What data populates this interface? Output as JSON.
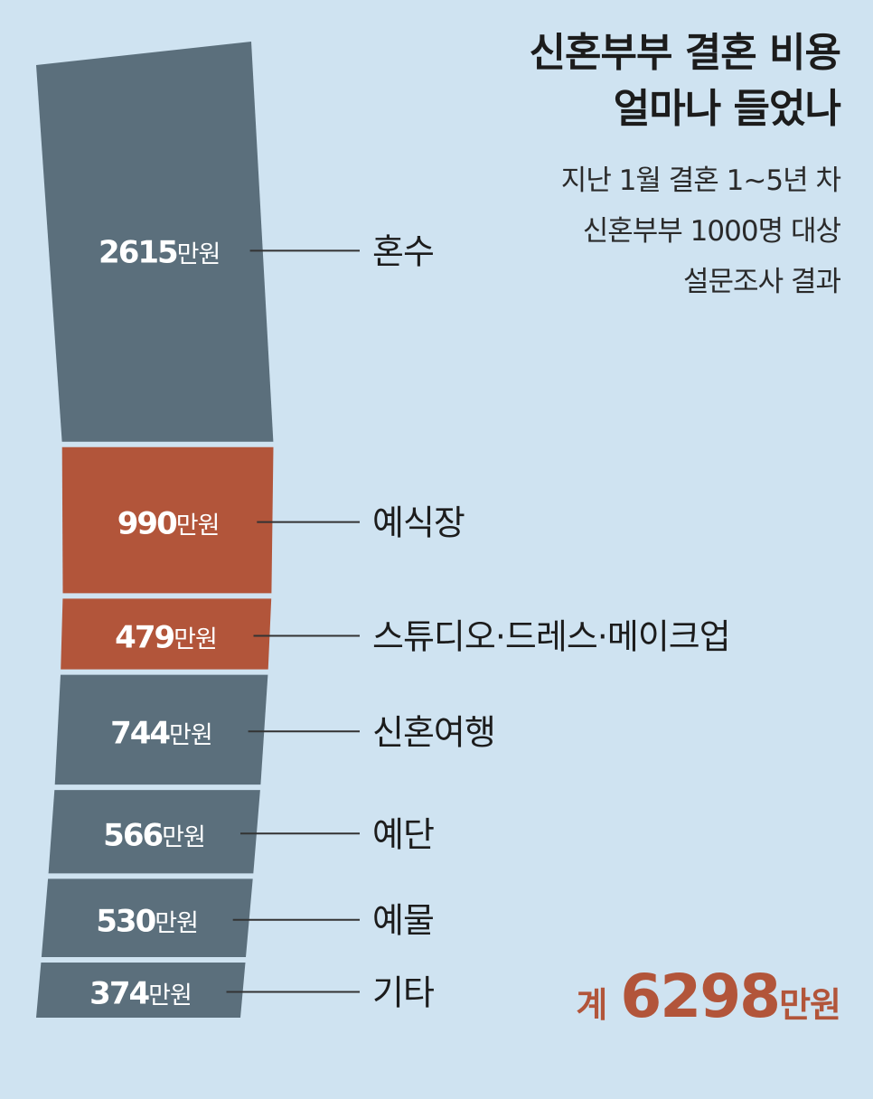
{
  "title": {
    "line1": "신혼부부 결혼 비용",
    "line2": "얼마나 들었나"
  },
  "subtitle": {
    "line1": "지난 1월 결혼 1~5년 차",
    "line2": "신혼부부 1000명 대상",
    "line3": "설문조사 결과"
  },
  "total": {
    "prefix": "계",
    "value": "6298",
    "unit": "만원"
  },
  "chart_data": {
    "type": "bar",
    "orientation": "stacked-vertical",
    "unit": "만원",
    "categories": [
      "혼수",
      "예식장",
      "스튜디오·드레스·메이크업",
      "신혼여행",
      "예단",
      "예물",
      "기타"
    ],
    "values": [
      2615,
      990,
      479,
      744,
      566,
      530,
      374
    ],
    "value_labels": [
      "2615",
      "990",
      "479",
      "744",
      "566",
      "530",
      "374"
    ],
    "colors": [
      "#5b6f7c",
      "#b2553a",
      "#b2553a",
      "#5b6f7c",
      "#5b6f7c",
      "#5b6f7c",
      "#5b6f7c"
    ],
    "label_color": "#1c1c1c",
    "value_label_color": "#ffffff",
    "total": 6298
  }
}
